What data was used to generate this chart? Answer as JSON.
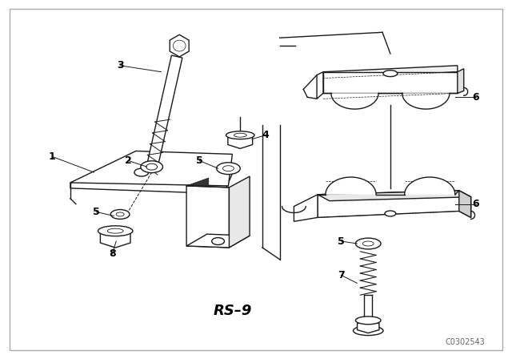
{
  "background_color": "#ffffff",
  "line_color": "#1a1a1a",
  "watermark": "C0302543",
  "ref_code": "RS-9",
  "fig_width": 6.4,
  "fig_height": 4.48,
  "dpi": 100
}
